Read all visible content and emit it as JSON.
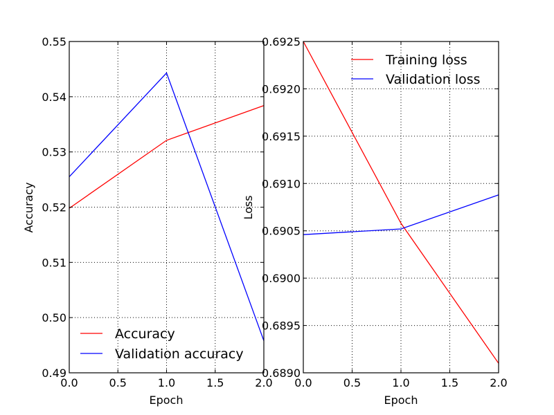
{
  "chart_data": [
    {
      "type": "line",
      "xlabel": "Epoch",
      "ylabel": "Accuracy",
      "xlim": [
        0.0,
        2.0
      ],
      "ylim": [
        0.49,
        0.55
      ],
      "xticks": [
        "0.0",
        "0.5",
        "1.0",
        "1.5",
        "2.0"
      ],
      "yticks": [
        "0.49",
        "0.50",
        "0.51",
        "0.52",
        "0.53",
        "0.54",
        "0.55"
      ],
      "grid": true,
      "legend_position": "bottom-left",
      "x": [
        0,
        1,
        2
      ],
      "series": [
        {
          "name": "Accuracy",
          "color": "#ff0000",
          "values": [
            0.5198,
            0.5321,
            0.5384
          ]
        },
        {
          "name": "Validation accuracy",
          "color": "#0000ff",
          "values": [
            0.5255,
            0.5443,
            0.4958
          ]
        }
      ]
    },
    {
      "type": "line",
      "xlabel": "Epoch",
      "ylabel": "Loss",
      "xlim": [
        0.0,
        2.0
      ],
      "ylim": [
        0.689,
        0.6925
      ],
      "xticks": [
        "0.0",
        "0.5",
        "1.0",
        "1.5",
        "2.0"
      ],
      "yticks": [
        "0.6890",
        "0.6895",
        "0.6900",
        "0.6905",
        "0.6910",
        "0.6915",
        "0.6920",
        "0.6925"
      ],
      "grid": true,
      "legend_position": "top-right",
      "x": [
        0,
        1,
        2
      ],
      "series": [
        {
          "name": "Training loss",
          "color": "#ff0000",
          "values": [
            0.6925,
            0.69058,
            0.6891
          ]
        },
        {
          "name": "Validation loss",
          "color": "#0000ff",
          "values": [
            0.69046,
            0.69052,
            0.69088
          ]
        }
      ]
    }
  ]
}
